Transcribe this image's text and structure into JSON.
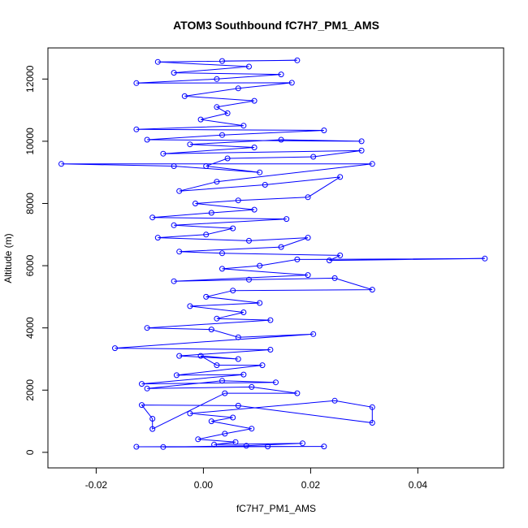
{
  "chart_data": {
    "type": "scatter",
    "title": "ATOM3 Southbound fC7H7_PM1_AMS",
    "xlabel": "fC7H7_PM1_AMS",
    "ylabel": "Altitude (m)",
    "xlim": [
      -0.029,
      0.056
    ],
    "ylim": [
      -500,
      13000
    ],
    "xticks": [
      -0.02,
      0.0,
      0.02,
      0.04
    ],
    "xtick_labels": [
      "-0.02",
      "0.00",
      "0.02",
      "0.04"
    ],
    "yticks": [
      0,
      2000,
      4000,
      6000,
      8000,
      10000,
      12000
    ],
    "ytick_labels": [
      "0",
      "2000",
      "4000",
      "6000",
      "8000",
      "10000",
      "12000"
    ],
    "series": [
      {
        "color": "#0000ff",
        "marker": "open-circle",
        "line": true,
        "points": [
          [
            -0.0125,
            180
          ],
          [
            0.012,
            190
          ],
          [
            0.0225,
            190
          ],
          [
            -0.0075,
            170
          ],
          [
            0.008,
            210
          ],
          [
            0.0185,
            290
          ],
          [
            0.002,
            250
          ],
          [
            0.006,
            330
          ],
          [
            -0.001,
            420
          ],
          [
            0.004,
            600
          ],
          [
            0.009,
            760
          ],
          [
            0.0015,
            1000
          ],
          [
            0.0055,
            1120
          ],
          [
            -0.0025,
            1250
          ],
          [
            0.0245,
            1660
          ],
          [
            0.0315,
            1450
          ],
          [
            0.0315,
            950
          ],
          [
            0.0065,
            1500
          ],
          [
            -0.0115,
            1520
          ],
          [
            -0.0095,
            1080
          ],
          [
            -0.0095,
            750
          ],
          [
            0.004,
            1900
          ],
          [
            0.0175,
            1900
          ],
          [
            0.009,
            2100
          ],
          [
            -0.0105,
            2050
          ],
          [
            0.0035,
            2300
          ],
          [
            0.0135,
            2250
          ],
          [
            -0.0115,
            2200
          ],
          [
            0.0075,
            2500
          ],
          [
            -0.005,
            2480
          ],
          [
            0.011,
            2800
          ],
          [
            0.0025,
            2800
          ],
          [
            -0.0005,
            3100
          ],
          [
            0.0065,
            3000
          ],
          [
            -0.0045,
            3100
          ],
          [
            0.0125,
            3300
          ],
          [
            -0.0165,
            3350
          ],
          [
            0.0205,
            3800
          ],
          [
            0.0065,
            3700
          ],
          [
            0.0015,
            3950
          ],
          [
            -0.0105,
            4000
          ],
          [
            0.0125,
            4250
          ],
          [
            0.0025,
            4300
          ],
          [
            0.0075,
            4500
          ],
          [
            -0.0025,
            4700
          ],
          [
            0.0105,
            4800
          ],
          [
            0.0005,
            5000
          ],
          [
            0.0055,
            5200
          ],
          [
            0.0315,
            5230
          ],
          [
            0.0245,
            5600
          ],
          [
            0.0085,
            5550
          ],
          [
            -0.0055,
            5500
          ],
          [
            0.0195,
            5700
          ],
          [
            0.0035,
            5900
          ],
          [
            0.0105,
            6000
          ],
          [
            0.0175,
            6200
          ],
          [
            0.0525,
            6230
          ],
          [
            0.0235,
            6170
          ],
          [
            0.0255,
            6330
          ],
          [
            0.0035,
            6400
          ],
          [
            -0.0045,
            6450
          ],
          [
            0.0145,
            6600
          ],
          [
            0.0195,
            6900
          ],
          [
            0.0085,
            6800
          ],
          [
            -0.0085,
            6900
          ],
          [
            0.0005,
            7000
          ],
          [
            0.0055,
            7200
          ],
          [
            -0.0055,
            7300
          ],
          [
            0.0155,
            7500
          ],
          [
            -0.0095,
            7550
          ],
          [
            0.0015,
            7700
          ],
          [
            0.0095,
            7800
          ],
          [
            -0.0015,
            8000
          ],
          [
            0.0065,
            8100
          ],
          [
            0.0195,
            8200
          ],
          [
            0.0255,
            8850
          ],
          [
            0.0115,
            8600
          ],
          [
            -0.0045,
            8400
          ],
          [
            0.0025,
            8700
          ],
          [
            0.0315,
            9270
          ],
          [
            -0.0265,
            9270
          ],
          [
            -0.0055,
            9200
          ],
          [
            0.0105,
            9000
          ],
          [
            0.0005,
            9200
          ],
          [
            0.0045,
            9450
          ],
          [
            0.0205,
            9500
          ],
          [
            0.0295,
            9700
          ],
          [
            -0.0075,
            9600
          ],
          [
            0.0095,
            9800
          ],
          [
            -0.0025,
            9900
          ],
          [
            0.0145,
            10050
          ],
          [
            0.0295,
            10000
          ],
          [
            -0.0105,
            10050
          ],
          [
            0.0035,
            10200
          ],
          [
            0.0225,
            10350
          ],
          [
            -0.0125,
            10380
          ],
          [
            0.0075,
            10500
          ],
          [
            -0.0005,
            10700
          ],
          [
            0.0045,
            10900
          ],
          [
            0.0025,
            11100
          ],
          [
            0.0095,
            11300
          ],
          [
            -0.0035,
            11450
          ],
          [
            0.0065,
            11700
          ],
          [
            0.0165,
            11880
          ],
          [
            -0.0125,
            11870
          ],
          [
            0.0025,
            12000
          ],
          [
            0.0145,
            12150
          ],
          [
            -0.0055,
            12200
          ],
          [
            0.0085,
            12400
          ],
          [
            -0.0085,
            12550
          ],
          [
            0.0175,
            12600
          ],
          [
            0.0035,
            12580
          ]
        ]
      }
    ]
  }
}
